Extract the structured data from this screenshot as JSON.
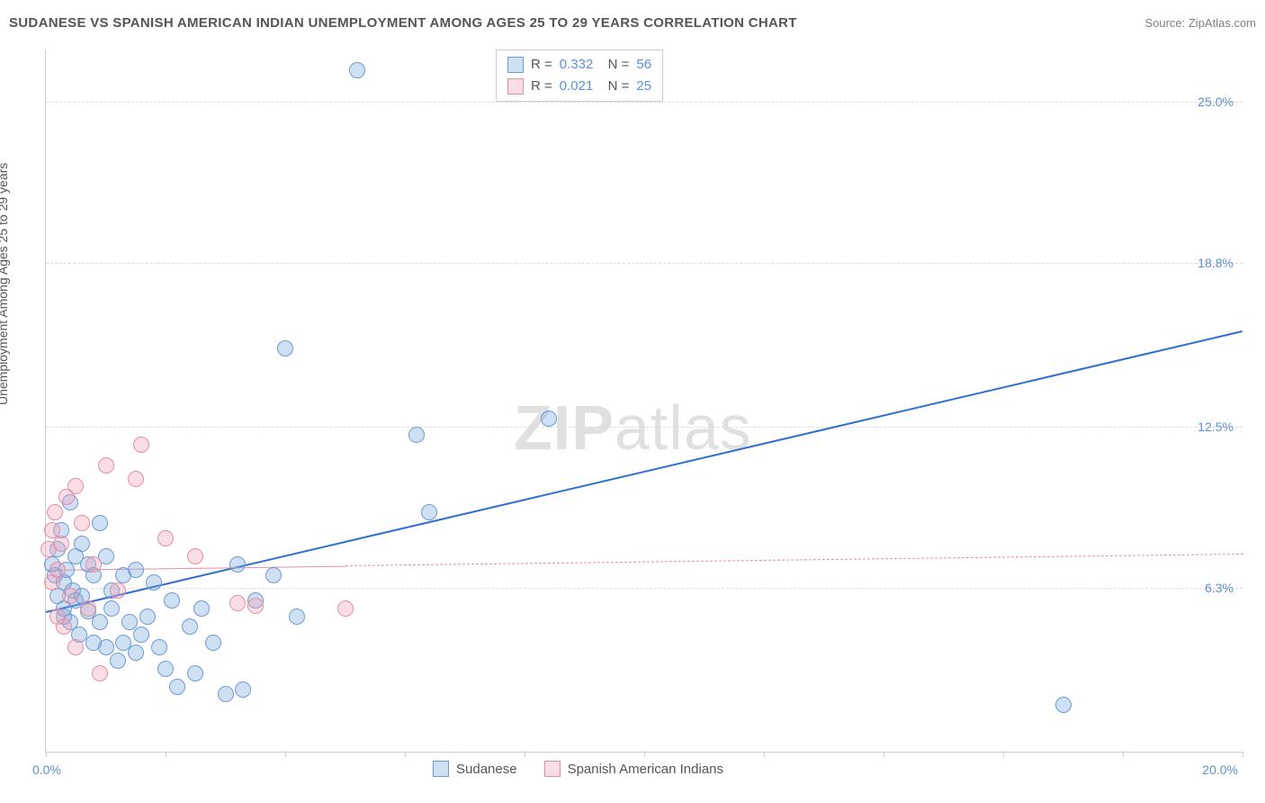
{
  "title": "SUDANESE VS SPANISH AMERICAN INDIAN UNEMPLOYMENT AMONG AGES 25 TO 29 YEARS CORRELATION CHART",
  "source": "Source: ZipAtlas.com",
  "ylabel": "Unemployment Among Ages 25 to 29 years",
  "watermark_bold": "ZIP",
  "watermark_thin": "atlas",
  "chart": {
    "type": "scatter",
    "xlim": [
      0,
      20
    ],
    "ylim": [
      0,
      27
    ],
    "xtick_positions": [
      0,
      2,
      4,
      6,
      8,
      10,
      12,
      14,
      16,
      18,
      20
    ],
    "xlabel_min": "0.0%",
    "xlabel_max": "20.0%",
    "ytick_labels": [
      {
        "v": 6.3,
        "text": "6.3%"
      },
      {
        "v": 12.5,
        "text": "12.5%"
      },
      {
        "v": 18.8,
        "text": "18.8%"
      },
      {
        "v": 25.0,
        "text": "25.0%"
      }
    ],
    "gridline_color": "#dddddd",
    "background_color": "#ffffff",
    "marker_radius": 8,
    "marker_border_width": 1.2,
    "series": [
      {
        "name": "Sudanese",
        "fill": "rgba(120,165,220,0.35)",
        "stroke": "#6a9bd8",
        "R": "0.332",
        "N": "56",
        "trend": {
          "x1": 0,
          "y1": 5.4,
          "x2": 20,
          "y2": 16.2,
          "color": "#2e6fd1",
          "width": 2,
          "dash": "solid",
          "solid_until_x": 20
        },
        "points": [
          [
            0.1,
            7.2
          ],
          [
            0.15,
            6.8
          ],
          [
            0.2,
            6.0
          ],
          [
            0.2,
            7.8
          ],
          [
            0.25,
            8.5
          ],
          [
            0.3,
            5.2
          ],
          [
            0.3,
            6.5
          ],
          [
            0.35,
            7.0
          ],
          [
            0.4,
            9.6
          ],
          [
            0.4,
            5.0
          ],
          [
            0.45,
            6.2
          ],
          [
            0.5,
            5.8
          ],
          [
            0.5,
            7.5
          ],
          [
            0.55,
            4.5
          ],
          [
            0.6,
            8.0
          ],
          [
            0.6,
            6.0
          ],
          [
            0.7,
            7.2
          ],
          [
            0.7,
            5.4
          ],
          [
            0.8,
            4.2
          ],
          [
            0.8,
            6.8
          ],
          [
            0.9,
            5.0
          ],
          [
            0.9,
            8.8
          ],
          [
            1.0,
            7.5
          ],
          [
            1.0,
            4.0
          ],
          [
            1.1,
            6.2
          ],
          [
            1.1,
            5.5
          ],
          [
            1.2,
            3.5
          ],
          [
            1.3,
            4.2
          ],
          [
            1.3,
            6.8
          ],
          [
            1.4,
            5.0
          ],
          [
            1.5,
            7.0
          ],
          [
            1.5,
            3.8
          ],
          [
            1.6,
            4.5
          ],
          [
            1.7,
            5.2
          ],
          [
            1.8,
            6.5
          ],
          [
            1.9,
            4.0
          ],
          [
            2.0,
            3.2
          ],
          [
            2.1,
            5.8
          ],
          [
            2.2,
            2.5
          ],
          [
            2.4,
            4.8
          ],
          [
            2.5,
            3.0
          ],
          [
            2.6,
            5.5
          ],
          [
            2.8,
            4.2
          ],
          [
            3.0,
            2.2
          ],
          [
            3.2,
            7.2
          ],
          [
            3.3,
            2.4
          ],
          [
            3.5,
            5.8
          ],
          [
            3.8,
            6.8
          ],
          [
            4.0,
            15.5
          ],
          [
            4.2,
            5.2
          ],
          [
            5.2,
            26.2
          ],
          [
            6.2,
            12.2
          ],
          [
            6.4,
            9.2
          ],
          [
            8.4,
            12.8
          ],
          [
            17.0,
            1.8
          ],
          [
            0.3,
            5.5
          ]
        ]
      },
      {
        "name": "Spanish American Indians",
        "fill": "rgba(240,160,180,0.35)",
        "stroke": "#e88ca6",
        "R": "0.021",
        "N": "25",
        "trend": {
          "x1": 0,
          "y1": 7.0,
          "x2": 20,
          "y2": 7.6,
          "color": "#e88ca6",
          "width": 1.5,
          "dash": "dashed",
          "solid_until_x": 5
        },
        "points": [
          [
            0.05,
            7.8
          ],
          [
            0.1,
            8.5
          ],
          [
            0.1,
            6.5
          ],
          [
            0.15,
            9.2
          ],
          [
            0.2,
            7.0
          ],
          [
            0.2,
            5.2
          ],
          [
            0.25,
            8.0
          ],
          [
            0.3,
            4.8
          ],
          [
            0.35,
            9.8
          ],
          [
            0.4,
            6.0
          ],
          [
            0.5,
            10.2
          ],
          [
            0.5,
            4.0
          ],
          [
            0.6,
            8.8
          ],
          [
            0.7,
            5.5
          ],
          [
            0.8,
            7.2
          ],
          [
            0.9,
            3.0
          ],
          [
            1.0,
            11.0
          ],
          [
            1.2,
            6.2
          ],
          [
            1.5,
            10.5
          ],
          [
            1.6,
            11.8
          ],
          [
            2.0,
            8.2
          ],
          [
            2.5,
            7.5
          ],
          [
            3.2,
            5.7
          ],
          [
            3.5,
            5.6
          ],
          [
            5.0,
            5.5
          ]
        ]
      }
    ],
    "legend": {
      "items": [
        {
          "label": "Sudanese",
          "fill": "rgba(120,165,220,0.35)",
          "stroke": "#6a9bd8"
        },
        {
          "label": "Spanish American Indians",
          "fill": "rgba(240,160,180,0.35)",
          "stroke": "#e88ca6"
        }
      ]
    }
  }
}
